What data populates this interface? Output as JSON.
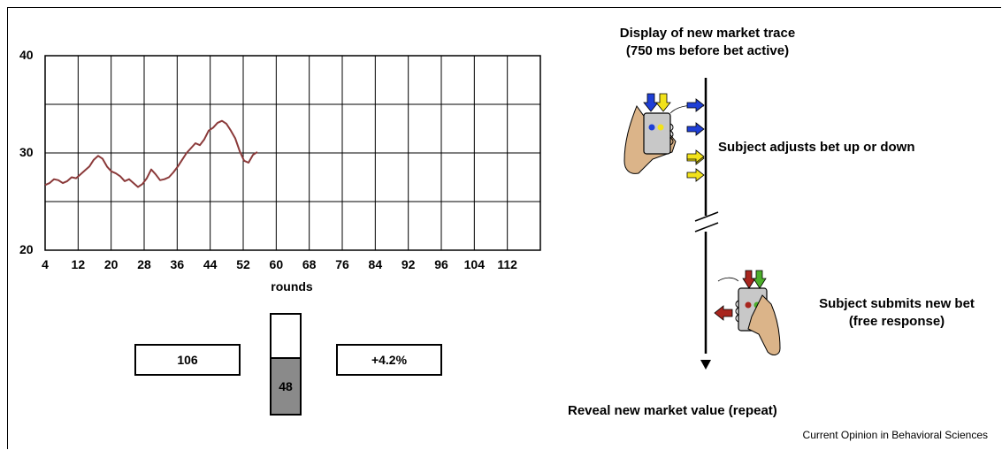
{
  "chart_data": {
    "type": "line",
    "title": "",
    "xlabel": "rounds",
    "ylabel": "",
    "xlim": [
      4,
      116
    ],
    "ylim": [
      20,
      40
    ],
    "x_ticks": [
      "4",
      "12",
      "20",
      "28",
      "36",
      "44",
      "52",
      "60",
      "68",
      "76",
      "84",
      "92",
      "96",
      "104",
      "112"
    ],
    "y_ticks": [
      "20",
      "30",
      "40"
    ],
    "grid": true,
    "series": [
      {
        "color": "#8b3a3a",
        "points": [
          [
            4,
            26.7
          ],
          [
            5,
            26.9
          ],
          [
            6,
            27.3
          ],
          [
            7,
            27.2
          ],
          [
            8,
            26.9
          ],
          [
            9,
            27.1
          ],
          [
            10,
            27.5
          ],
          [
            11,
            27.4
          ],
          [
            12,
            27.8
          ],
          [
            13,
            28.2
          ],
          [
            14,
            28.6
          ],
          [
            15,
            29.3
          ],
          [
            16,
            29.7
          ],
          [
            17,
            29.4
          ],
          [
            18,
            28.6
          ],
          [
            19,
            28.1
          ],
          [
            20,
            27.9
          ],
          [
            21,
            27.6
          ],
          [
            22,
            27.1
          ],
          [
            23,
            27.3
          ],
          [
            24,
            26.9
          ],
          [
            25,
            26.5
          ],
          [
            26,
            26.8
          ],
          [
            27,
            27.4
          ],
          [
            28,
            28.3
          ],
          [
            29,
            27.8
          ],
          [
            30,
            27.2
          ],
          [
            31,
            27.3
          ],
          [
            32,
            27.5
          ],
          [
            33,
            28.0
          ],
          [
            34,
            28.6
          ],
          [
            35,
            29.3
          ],
          [
            36,
            30.0
          ],
          [
            37,
            30.5
          ],
          [
            38,
            31.0
          ],
          [
            39,
            30.8
          ],
          [
            40,
            31.4
          ],
          [
            41,
            32.3
          ],
          [
            42,
            32.6
          ],
          [
            43,
            33.1
          ],
          [
            44,
            33.3
          ],
          [
            45,
            33.0
          ],
          [
            46,
            32.3
          ],
          [
            47,
            31.5
          ],
          [
            48,
            30.2
          ],
          [
            49,
            29.2
          ],
          [
            50,
            29.0
          ],
          [
            51,
            29.8
          ],
          [
            52,
            30.1
          ]
        ]
      }
    ]
  },
  "bet_display": {
    "left_value": "106",
    "gauge_value": "48",
    "gauge_fraction": 0.55,
    "right_value": "+4.2%"
  },
  "timeline": {
    "top_label_line1": "Display of new market trace",
    "top_label_line2": "(750 ms before bet active)",
    "adjust_label": "Subject adjusts bet up or down",
    "submit_label_line1": "Subject submits new bet",
    "submit_label_line2": "(free response)",
    "bottom_label": "Reveal new market value (repeat)"
  },
  "colors": {
    "line": "#8b3a3a",
    "up_arrow": "#1f3fd6",
    "down_arrow": "#f2e21a",
    "submit_red": "#a8261e",
    "submit_green": "#4cae2a",
    "device_gray": "#c8c8c8",
    "hand_skin": "#dbb489"
  },
  "credit": "Current Opinion in Behavioral Sciences"
}
